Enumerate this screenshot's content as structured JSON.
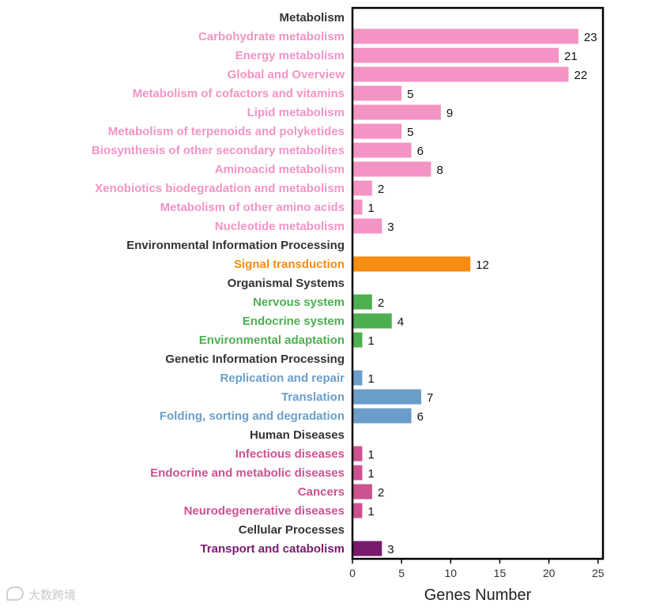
{
  "chart_data": {
    "type": "bar",
    "orientation": "horizontal",
    "xlabel": "Genes Number",
    "xlim": [
      0,
      25.5
    ],
    "xticks": [
      0,
      5,
      10,
      15,
      20,
      25
    ],
    "grid": false,
    "rows": [
      {
        "label": "Metabolism",
        "value": null,
        "group": "header",
        "color": "#333333"
      },
      {
        "label": "Carbohydrate metabolism",
        "value": 23,
        "group": "Metabolism",
        "color": "#f394c4"
      },
      {
        "label": "Energy metabolism",
        "value": 21,
        "group": "Metabolism",
        "color": "#f394c4"
      },
      {
        "label": "Global and Overview",
        "value": 22,
        "group": "Metabolism",
        "color": "#f394c4"
      },
      {
        "label": "Metabolism of cofactors and vitamins",
        "value": 5,
        "group": "Metabolism",
        "color": "#f394c4"
      },
      {
        "label": "Lipid metabolism",
        "value": 9,
        "group": "Metabolism",
        "color": "#f394c4"
      },
      {
        "label": "Metabolism of terpenoids and polyketides",
        "value": 5,
        "group": "Metabolism",
        "color": "#f394c4"
      },
      {
        "label": "Biosynthesis of other secondary metabolites",
        "value": 6,
        "group": "Metabolism",
        "color": "#f394c4"
      },
      {
        "label": "Aminoacid metabolism",
        "value": 8,
        "group": "Metabolism",
        "color": "#f394c4"
      },
      {
        "label": "Xenobiotics biodegradation and metabolism",
        "value": 2,
        "group": "Metabolism",
        "color": "#f394c4"
      },
      {
        "label": "Metabolism of other amino acids",
        "value": 1,
        "group": "Metabolism",
        "color": "#f394c4"
      },
      {
        "label": "Nucleotide metabolism",
        "value": 3,
        "group": "Metabolism",
        "color": "#f394c4"
      },
      {
        "label": "Environmental Information Processing",
        "value": null,
        "group": "header",
        "color": "#333333"
      },
      {
        "label": "Signal transduction",
        "value": 12,
        "group": "Environmental Information Processing",
        "color": "#f88c10"
      },
      {
        "label": "Organismal Systems",
        "value": null,
        "group": "header",
        "color": "#333333"
      },
      {
        "label": "Nervous system",
        "value": 2,
        "group": "Organismal Systems",
        "color": "#4caf50"
      },
      {
        "label": "Endocrine system",
        "value": 4,
        "group": "Organismal Systems",
        "color": "#4caf50"
      },
      {
        "label": "Environmental adaptation",
        "value": 1,
        "group": "Organismal Systems",
        "color": "#4caf50"
      },
      {
        "label": "Genetic Information Processing",
        "value": null,
        "group": "header",
        "color": "#333333"
      },
      {
        "label": "Replication and repair",
        "value": 1,
        "group": "Genetic Information Processing",
        "color": "#6a9ec9"
      },
      {
        "label": "Translation",
        "value": 7,
        "group": "Genetic Information Processing",
        "color": "#6a9ec9"
      },
      {
        "label": "Folding, sorting and degradation",
        "value": 6,
        "group": "Genetic Information Processing",
        "color": "#6a9ec9"
      },
      {
        "label": "Human Diseases",
        "value": null,
        "group": "header",
        "color": "#333333"
      },
      {
        "label": "Infectious diseases",
        "value": 1,
        "group": "Human Diseases",
        "color": "#cd5290"
      },
      {
        "label": "Endocrine and metabolic diseases",
        "value": 1,
        "group": "Human Diseases",
        "color": "#cd5290"
      },
      {
        "label": "Cancers",
        "value": 2,
        "group": "Human Diseases",
        "color": "#cd5290"
      },
      {
        "label": "Neurodegenerative  diseases",
        "value": 1,
        "group": "Human Diseases",
        "color": "#cd5290"
      },
      {
        "label": "Cellular Processes",
        "value": null,
        "group": "header",
        "color": "#333333"
      },
      {
        "label": "Transport and catabolism",
        "value": 3,
        "group": "Cellular Processes",
        "color": "#7a1a6e"
      }
    ]
  },
  "watermark": {
    "text": "大数跨境",
    "icon": "chat-bubble-icon"
  }
}
